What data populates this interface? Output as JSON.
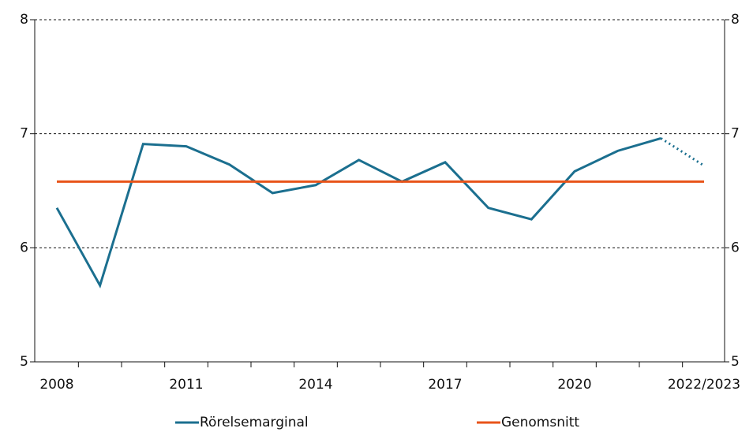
{
  "chart_data": {
    "type": "line",
    "categories": [
      "2008",
      null,
      null,
      "2011",
      null,
      null,
      "2014",
      null,
      null,
      "2017",
      null,
      null,
      "2020",
      null,
      null,
      "2022/2023"
    ],
    "series": [
      {
        "name": "Rörelsemarginal",
        "color": "#1b6f8f",
        "forecast_from": 14,
        "values": [
          6.35,
          5.67,
          6.91,
          6.89,
          6.73,
          6.48,
          6.55,
          6.77,
          6.58,
          6.75,
          6.35,
          6.25,
          6.67,
          6.85,
          6.96,
          6.72
        ]
      },
      {
        "name": "Genomsnitt",
        "color": "#e8541a",
        "values": [
          6.58,
          6.58,
          6.58,
          6.58,
          6.58,
          6.58,
          6.58,
          6.58,
          6.58,
          6.58,
          6.58,
          6.58,
          6.58,
          6.58,
          6.58,
          6.58
        ]
      }
    ],
    "ylim": [
      5,
      8
    ],
    "yticks": [
      5,
      6,
      7,
      8
    ],
    "y2lim": [
      5,
      8
    ],
    "y2ticks": [
      5,
      6,
      7,
      8
    ],
    "grid": true,
    "legend": "bottom"
  }
}
